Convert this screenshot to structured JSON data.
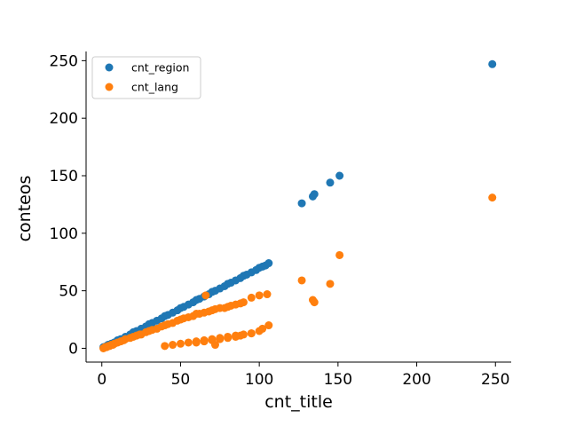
{
  "chart_data": {
    "type": "scatter",
    "title": "",
    "xlabel": "cnt_title",
    "ylabel": "conteos",
    "xlim": [
      -10,
      260
    ],
    "ylim": [
      -12,
      258
    ],
    "xticks": [
      0,
      50,
      100,
      150,
      200,
      250
    ],
    "yticks": [
      0,
      50,
      100,
      150,
      200,
      250
    ],
    "grid": false,
    "legend_position": "top-left",
    "series": [
      {
        "name": "cnt_region",
        "color": "#1f77b4",
        "x": [
          1,
          2,
          3,
          4,
          5,
          6,
          8,
          10,
          12,
          15,
          18,
          20,
          22,
          25,
          28,
          30,
          32,
          35,
          38,
          40,
          42,
          45,
          48,
          50,
          52,
          55,
          58,
          60,
          62,
          65,
          68,
          70,
          72,
          75,
          78,
          80,
          82,
          85,
          88,
          90,
          92,
          95,
          98,
          100,
          102,
          104,
          106,
          127,
          134,
          135,
          145,
          151,
          248
        ],
        "y": [
          1,
          1,
          2,
          3,
          3,
          4,
          5,
          7,
          8,
          10,
          12,
          14,
          15,
          17,
          19,
          21,
          22,
          24,
          26,
          28,
          29,
          31,
          33,
          35,
          36,
          38,
          40,
          42,
          43,
          45,
          47,
          49,
          50,
          52,
          54,
          56,
          57,
          59,
          61,
          63,
          64,
          66,
          68,
          70,
          71,
          72,
          74,
          126,
          132,
          134,
          144,
          150,
          247
        ]
      },
      {
        "name": "cnt_lang",
        "color": "#ff7f0e",
        "x": [
          1,
          2,
          3,
          4,
          5,
          6,
          7,
          8,
          10,
          12,
          14,
          15,
          18,
          20,
          22,
          24,
          25,
          28,
          30,
          32,
          35,
          38,
          40,
          42,
          45,
          48,
          50,
          52,
          55,
          58,
          60,
          62,
          65,
          68,
          70,
          72,
          75,
          78,
          80,
          82,
          85,
          88,
          90,
          95,
          100,
          105,
          60,
          65,
          70,
          75,
          80,
          85,
          88,
          95,
          100,
          102,
          106,
          40,
          45,
          50,
          55,
          60,
          65,
          70,
          75,
          80,
          85,
          90,
          95,
          66,
          72,
          127,
          134,
          135,
          145,
          151,
          248
        ],
        "y": [
          0,
          1,
          1,
          2,
          2,
          3,
          3,
          4,
          5,
          6,
          7,
          8,
          9,
          10,
          11,
          12,
          12,
          14,
          15,
          16,
          17,
          19,
          20,
          21,
          22,
          24,
          25,
          26,
          27,
          28,
          30,
          30,
          31,
          32,
          33,
          34,
          35,
          35,
          36,
          37,
          38,
          39,
          40,
          44,
          46,
          47,
          5,
          6,
          7,
          8,
          9,
          10,
          11,
          13,
          15,
          17,
          20,
          2,
          3,
          4,
          5,
          6,
          7,
          8,
          9,
          10,
          11,
          12,
          13,
          46,
          3,
          59,
          42,
          40,
          56,
          81,
          131
        ]
      }
    ]
  }
}
